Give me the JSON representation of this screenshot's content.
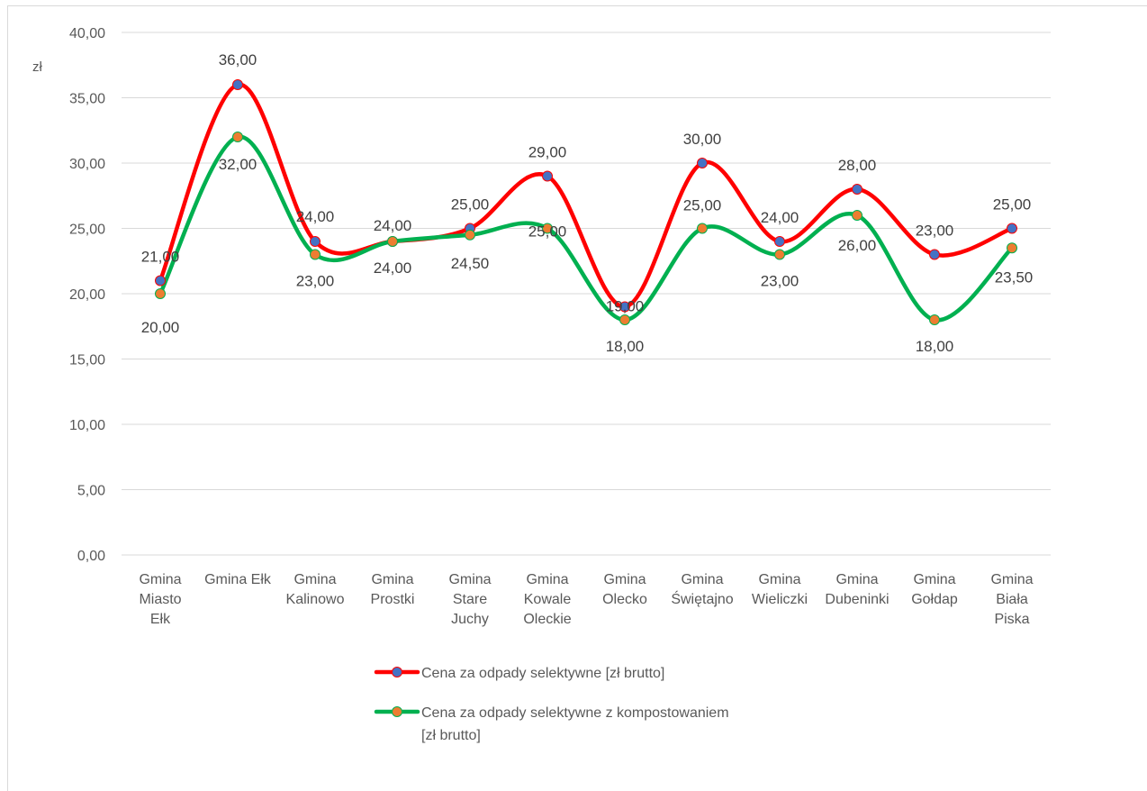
{
  "chart_data": {
    "type": "line",
    "smooth": true,
    "y_unit_label": "zł",
    "ylim": [
      0,
      40
    ],
    "yticks": [
      "0,00",
      "5,00",
      "10,00",
      "15,00",
      "20,00",
      "25,00",
      "30,00",
      "35,00",
      "40,00"
    ],
    "grid": true,
    "legend_position": "bottom",
    "categories": [
      [
        "Gmina",
        "Miasto",
        "Ełk"
      ],
      [
        "Gmina Ełk"
      ],
      [
        "Gmina",
        "Kalinowo"
      ],
      [
        "Gmina",
        "Prostki"
      ],
      [
        "Gmina",
        "Stare",
        "Juchy"
      ],
      [
        "Gmina",
        "Kowale",
        "Oleckie"
      ],
      [
        "Gmina",
        "Olecko"
      ],
      [
        "Gmina",
        "Świętajno"
      ],
      [
        "Gmina",
        "Wieliczki"
      ],
      [
        "Gmina",
        "Dubeninki"
      ],
      [
        "Gmina",
        "Gołdap"
      ],
      [
        "Gmina",
        "Biała",
        "Piska"
      ]
    ],
    "series": [
      {
        "name": "Cena za odpady selektywne [zł brutto]",
        "legend_lines": [
          "Cena za odpady selektywne [zł brutto]"
        ],
        "line_color": "#ff0000",
        "marker_color": "#4472c4",
        "values": [
          21,
          36,
          24,
          24,
          25,
          29,
          19,
          30,
          24,
          28,
          23,
          25
        ],
        "labels": [
          "21,00",
          "36,00",
          "24,00",
          "24,00",
          "25,00",
          "29,00",
          "19,00",
          "30,00",
          "24,00",
          "28,00",
          "23,00",
          "25,00"
        ]
      },
      {
        "name": "Cena za odpady selektywne z kompostowaniem [zł brutto]",
        "legend_lines": [
          "Cena za odpady selektywne z kompostowaniem",
          "[zł brutto]"
        ],
        "line_color": "#00b050",
        "marker_color": "#ed7d31",
        "values": [
          20,
          32,
          23,
          24,
          24.5,
          25,
          18,
          25,
          23,
          26,
          18,
          23.5
        ],
        "labels": [
          "20,00",
          "32,00",
          "23,00",
          "24,00",
          "24,50",
          "25,00",
          "18,00",
          "25,00",
          "23,00",
          "26,00",
          "18,00",
          "23,50"
        ]
      }
    ]
  }
}
